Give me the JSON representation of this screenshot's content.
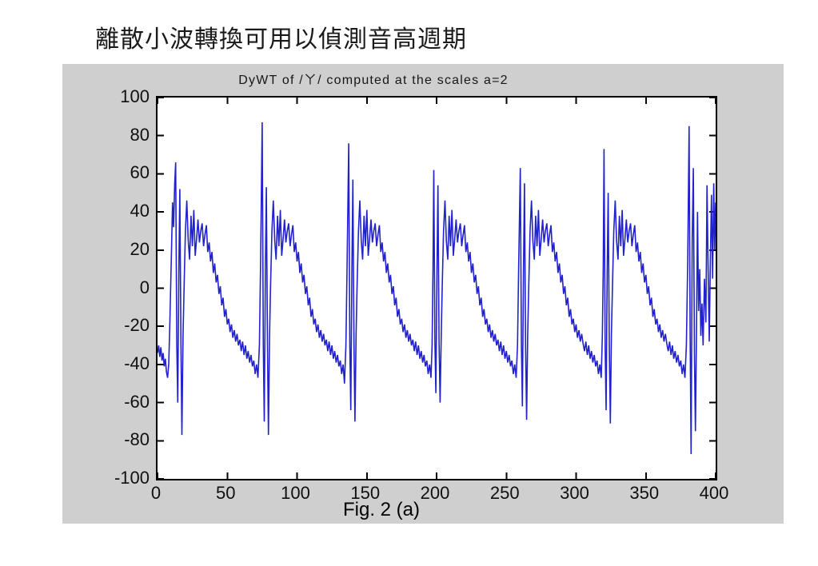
{
  "heading": "離散小波轉換可用以偵測音高週期",
  "figure": {
    "caption": "Fig. 2 (a)",
    "panel_background": "#cfcfcf",
    "axes_background": "#ffffff",
    "axis_color": "#000000"
  },
  "chart_data": {
    "type": "line",
    "title": "DyWT of /ㄚ/ computed at the scales a=2",
    "xlabel": "",
    "ylabel": "",
    "xlim": [
      0,
      400
    ],
    "ylim": [
      -100,
      100
    ],
    "xticks": [
      0,
      50,
      100,
      150,
      200,
      250,
      300,
      350,
      400
    ],
    "yticks": [
      -100,
      -80,
      -60,
      -40,
      -20,
      0,
      20,
      40,
      60,
      80,
      100
    ],
    "grid": false,
    "legend": null,
    "line_color": "#2222cc",
    "pitch_spike_x": [
      13,
      75,
      137,
      198,
      260,
      320,
      381
    ],
    "points": [
      [
        0,
        -34
      ],
      [
        0.8,
        -30
      ],
      [
        1.6,
        -36
      ],
      [
        2.4,
        -31
      ],
      [
        3.2,
        -38
      ],
      [
        4,
        -34
      ],
      [
        4.8,
        -41
      ],
      [
        5.6,
        -37
      ],
      [
        6.4,
        -44
      ],
      [
        7.2,
        -47
      ],
      [
        8,
        -40
      ],
      [
        8.7,
        -22
      ],
      [
        9.4,
        0
      ],
      [
        10.1,
        22
      ],
      [
        10.8,
        45
      ],
      [
        11.5,
        32
      ],
      [
        12.3,
        55
      ],
      [
        13,
        66
      ],
      [
        13.8,
        -30
      ],
      [
        14.5,
        -60
      ],
      [
        15.3,
        10
      ],
      [
        16,
        52
      ],
      [
        16.8,
        -30
      ],
      [
        17.5,
        -77
      ],
      [
        18.3,
        -25
      ],
      [
        19,
        0
      ],
      [
        20,
        30
      ],
      [
        21,
        46
      ],
      [
        22,
        25
      ],
      [
        23,
        15
      ],
      [
        24,
        38
      ],
      [
        25,
        22
      ],
      [
        26,
        41
      ],
      [
        27,
        17
      ],
      [
        28,
        26
      ],
      [
        29,
        36
      ],
      [
        30,
        24
      ],
      [
        31,
        30
      ],
      [
        32,
        34
      ],
      [
        33,
        22
      ],
      [
        34,
        28
      ],
      [
        35,
        33
      ],
      [
        36,
        19
      ],
      [
        37,
        24
      ],
      [
        38,
        14
      ],
      [
        39,
        19
      ],
      [
        40,
        8
      ],
      [
        41,
        13
      ],
      [
        42,
        3
      ],
      [
        43,
        7
      ],
      [
        44,
        -3
      ],
      [
        45,
        1
      ],
      [
        46,
        -9
      ],
      [
        47,
        -5
      ],
      [
        48,
        -15
      ],
      [
        49,
        -11
      ],
      [
        50,
        -19
      ],
      [
        51,
        -16
      ],
      [
        52,
        -23
      ],
      [
        53,
        -19
      ],
      [
        54,
        -26
      ],
      [
        55,
        -22
      ],
      [
        56,
        -28
      ],
      [
        57,
        -24
      ],
      [
        58,
        -30
      ],
      [
        59,
        -27
      ],
      [
        60,
        -33
      ],
      [
        61,
        -28
      ],
      [
        62,
        -35
      ],
      [
        63,
        -30
      ],
      [
        64,
        -37
      ],
      [
        65,
        -33
      ],
      [
        66,
        -39
      ],
      [
        67,
        -35
      ],
      [
        68,
        -41
      ],
      [
        69,
        -38
      ],
      [
        70,
        -45
      ],
      [
        71,
        -40
      ],
      [
        72,
        -47
      ],
      [
        73,
        -30
      ],
      [
        73.8,
        10
      ],
      [
        75,
        87
      ],
      [
        75.8,
        -30
      ],
      [
        76.5,
        -70
      ],
      [
        77.3,
        10
      ],
      [
        78,
        53
      ],
      [
        78.8,
        -30
      ],
      [
        79.5,
        -77
      ],
      [
        80.3,
        -25
      ],
      [
        81,
        0
      ],
      [
        82,
        30
      ],
      [
        83,
        46
      ],
      [
        84,
        25
      ],
      [
        85,
        15
      ],
      [
        86,
        38
      ],
      [
        87,
        22
      ],
      [
        88,
        41
      ],
      [
        89,
        17
      ],
      [
        90,
        26
      ],
      [
        91,
        36
      ],
      [
        92,
        24
      ],
      [
        93,
        30
      ],
      [
        94,
        34
      ],
      [
        95,
        22
      ],
      [
        96,
        28
      ],
      [
        97,
        33
      ],
      [
        98,
        19
      ],
      [
        99,
        24
      ],
      [
        100,
        14
      ],
      [
        101,
        19
      ],
      [
        102,
        8
      ],
      [
        103,
        13
      ],
      [
        104,
        3
      ],
      [
        105,
        7
      ],
      [
        106,
        -3
      ],
      [
        107,
        1
      ],
      [
        108,
        -9
      ],
      [
        109,
        -5
      ],
      [
        110,
        -15
      ],
      [
        111,
        -11
      ],
      [
        112,
        -19
      ],
      [
        113,
        -16
      ],
      [
        114,
        -23
      ],
      [
        115,
        -19
      ],
      [
        116,
        -26
      ],
      [
        117,
        -22
      ],
      [
        118,
        -28
      ],
      [
        119,
        -24
      ],
      [
        120,
        -30
      ],
      [
        121,
        -27
      ],
      [
        122,
        -33
      ],
      [
        123,
        -28
      ],
      [
        124,
        -35
      ],
      [
        125,
        -30
      ],
      [
        126,
        -37
      ],
      [
        127,
        -33
      ],
      [
        128,
        -39
      ],
      [
        129,
        -35
      ],
      [
        130,
        -41
      ],
      [
        131,
        -38
      ],
      [
        132,
        -45
      ],
      [
        133,
        -40
      ],
      [
        134,
        -50
      ],
      [
        135,
        -30
      ],
      [
        135.8,
        10
      ],
      [
        137,
        76
      ],
      [
        137.8,
        -30
      ],
      [
        138.5,
        -64
      ],
      [
        139.3,
        10
      ],
      [
        140,
        57
      ],
      [
        140.8,
        -30
      ],
      [
        141.5,
        -70
      ],
      [
        142.3,
        -25
      ],
      [
        143,
        0
      ],
      [
        144,
        30
      ],
      [
        145,
        46
      ],
      [
        146,
        25
      ],
      [
        147,
        15
      ],
      [
        148,
        38
      ],
      [
        149,
        22
      ],
      [
        150,
        41
      ],
      [
        151,
        17
      ],
      [
        152,
        26
      ],
      [
        153,
        36
      ],
      [
        154,
        24
      ],
      [
        155,
        30
      ],
      [
        156,
        34
      ],
      [
        157,
        22
      ],
      [
        158,
        28
      ],
      [
        159,
        33
      ],
      [
        160,
        19
      ],
      [
        161,
        24
      ],
      [
        162,
        14
      ],
      [
        163,
        19
      ],
      [
        164,
        8
      ],
      [
        165,
        13
      ],
      [
        166,
        3
      ],
      [
        167,
        7
      ],
      [
        168,
        -3
      ],
      [
        169,
        1
      ],
      [
        170,
        -9
      ],
      [
        171,
        -5
      ],
      [
        172,
        -15
      ],
      [
        173,
        -11
      ],
      [
        174,
        -19
      ],
      [
        175,
        -16
      ],
      [
        176,
        -23
      ],
      [
        177,
        -19
      ],
      [
        178,
        -26
      ],
      [
        179,
        -22
      ],
      [
        180,
        -28
      ],
      [
        181,
        -24
      ],
      [
        182,
        -30
      ],
      [
        183,
        -27
      ],
      [
        184,
        -33
      ],
      [
        185,
        -28
      ],
      [
        186,
        -35
      ],
      [
        187,
        -30
      ],
      [
        188,
        -37
      ],
      [
        189,
        -33
      ],
      [
        190,
        -39
      ],
      [
        191,
        -35
      ],
      [
        192,
        -41
      ],
      [
        193,
        -38
      ],
      [
        194,
        -45
      ],
      [
        195,
        -40
      ],
      [
        196,
        -47
      ],
      [
        196.8,
        -30
      ],
      [
        197.4,
        10
      ],
      [
        198,
        62
      ],
      [
        198.8,
        -28
      ],
      [
        199.5,
        -55
      ],
      [
        200.3,
        10
      ],
      [
        201,
        54
      ],
      [
        201.8,
        -28
      ],
      [
        202.5,
        -60
      ],
      [
        203.3,
        -25
      ],
      [
        204,
        0
      ],
      [
        205,
        30
      ],
      [
        206,
        46
      ],
      [
        207,
        25
      ],
      [
        208,
        15
      ],
      [
        209,
        38
      ],
      [
        210,
        22
      ],
      [
        211,
        41
      ],
      [
        212,
        17
      ],
      [
        213,
        26
      ],
      [
        214,
        36
      ],
      [
        215,
        24
      ],
      [
        216,
        30
      ],
      [
        217,
        34
      ],
      [
        218,
        22
      ],
      [
        219,
        28
      ],
      [
        220,
        33
      ],
      [
        221,
        19
      ],
      [
        222,
        24
      ],
      [
        223,
        14
      ],
      [
        224,
        19
      ],
      [
        225,
        8
      ],
      [
        226,
        13
      ],
      [
        227,
        3
      ],
      [
        228,
        7
      ],
      [
        229,
        -3
      ],
      [
        230,
        1
      ],
      [
        231,
        -9
      ],
      [
        232,
        -5
      ],
      [
        233,
        -15
      ],
      [
        234,
        -11
      ],
      [
        235,
        -19
      ],
      [
        236,
        -16
      ],
      [
        237,
        -23
      ],
      [
        238,
        -19
      ],
      [
        239,
        -26
      ],
      [
        240,
        -22
      ],
      [
        241,
        -28
      ],
      [
        242,
        -24
      ],
      [
        243,
        -30
      ],
      [
        244,
        -27
      ],
      [
        245,
        -33
      ],
      [
        246,
        -28
      ],
      [
        247,
        -35
      ],
      [
        248,
        -30
      ],
      [
        249,
        -37
      ],
      [
        250,
        -33
      ],
      [
        251,
        -39
      ],
      [
        252,
        -35
      ],
      [
        253,
        -41
      ],
      [
        254,
        -38
      ],
      [
        255,
        -45
      ],
      [
        256,
        -40
      ],
      [
        257,
        -47
      ],
      [
        258,
        -30
      ],
      [
        258.8,
        10
      ],
      [
        260,
        63
      ],
      [
        260.8,
        -30
      ],
      [
        261.5,
        -62
      ],
      [
        262.3,
        10
      ],
      [
        263,
        55
      ],
      [
        263.8,
        -30
      ],
      [
        264.5,
        -69
      ],
      [
        265.3,
        -25
      ],
      [
        266,
        0
      ],
      [
        267,
        30
      ],
      [
        268,
        46
      ],
      [
        269,
        25
      ],
      [
        270,
        15
      ],
      [
        271,
        38
      ],
      [
        272,
        22
      ],
      [
        273,
        41
      ],
      [
        274,
        17
      ],
      [
        275,
        26
      ],
      [
        276,
        36
      ],
      [
        277,
        24
      ],
      [
        278,
        30
      ],
      [
        279,
        34
      ],
      [
        280,
        22
      ],
      [
        281,
        28
      ],
      [
        282,
        33
      ],
      [
        283,
        19
      ],
      [
        284,
        24
      ],
      [
        285,
        14
      ],
      [
        286,
        19
      ],
      [
        287,
        8
      ],
      [
        288,
        13
      ],
      [
        289,
        3
      ],
      [
        290,
        7
      ],
      [
        291,
        -3
      ],
      [
        292,
        1
      ],
      [
        293,
        -9
      ],
      [
        294,
        -5
      ],
      [
        295,
        -15
      ],
      [
        296,
        -11
      ],
      [
        297,
        -19
      ],
      [
        298,
        -16
      ],
      [
        299,
        -23
      ],
      [
        300,
        -19
      ],
      [
        301,
        -26
      ],
      [
        302,
        -22
      ],
      [
        303,
        -28
      ],
      [
        304,
        -24
      ],
      [
        305,
        -29
      ],
      [
        306,
        -33
      ],
      [
        307,
        -28
      ],
      [
        308,
        -35
      ],
      [
        309,
        -30
      ],
      [
        310,
        -37
      ],
      [
        311,
        -33
      ],
      [
        312,
        -39
      ],
      [
        313,
        -35
      ],
      [
        314,
        -41
      ],
      [
        315,
        -38
      ],
      [
        316,
        -45
      ],
      [
        317,
        -40
      ],
      [
        318,
        -47
      ],
      [
        318.8,
        -25
      ],
      [
        319.4,
        10
      ],
      [
        320,
        73
      ],
      [
        320.8,
        -30
      ],
      [
        321.5,
        -64
      ],
      [
        322.3,
        10
      ],
      [
        323,
        50
      ],
      [
        323.8,
        -30
      ],
      [
        324.5,
        -71
      ],
      [
        325.3,
        -25
      ],
      [
        326,
        0
      ],
      [
        327,
        30
      ],
      [
        328,
        46
      ],
      [
        329,
        25
      ],
      [
        330,
        15
      ],
      [
        331,
        38
      ],
      [
        332,
        22
      ],
      [
        333,
        41
      ],
      [
        334,
        17
      ],
      [
        335,
        26
      ],
      [
        336,
        36
      ],
      [
        337,
        24
      ],
      [
        338,
        30
      ],
      [
        339,
        34
      ],
      [
        340,
        22
      ],
      [
        341,
        28
      ],
      [
        342,
        33
      ],
      [
        343,
        19
      ],
      [
        344,
        24
      ],
      [
        345,
        14
      ],
      [
        346,
        19
      ],
      [
        347,
        8
      ],
      [
        348,
        13
      ],
      [
        349,
        3
      ],
      [
        350,
        7
      ],
      [
        351,
        -3
      ],
      [
        352,
        1
      ],
      [
        353,
        -9
      ],
      [
        354,
        -5
      ],
      [
        355,
        -15
      ],
      [
        356,
        -11
      ],
      [
        357,
        -19
      ],
      [
        358,
        -16
      ],
      [
        359,
        -23
      ],
      [
        360,
        -19
      ],
      [
        361,
        -26
      ],
      [
        362,
        -22
      ],
      [
        363,
        -28
      ],
      [
        364,
        -24
      ],
      [
        365,
        -29
      ],
      [
        366,
        -33
      ],
      [
        367,
        -28
      ],
      [
        368,
        -35
      ],
      [
        369,
        -30
      ],
      [
        370,
        -37
      ],
      [
        371,
        -33
      ],
      [
        372,
        -39
      ],
      [
        373,
        -35
      ],
      [
        374,
        -41
      ],
      [
        375,
        -38
      ],
      [
        376,
        -45
      ],
      [
        377,
        -40
      ],
      [
        378,
        -47
      ],
      [
        379,
        -30
      ],
      [
        380,
        15
      ],
      [
        381,
        85
      ],
      [
        381.7,
        -25
      ],
      [
        382.4,
        -87
      ],
      [
        383.2,
        25
      ],
      [
        384,
        63
      ],
      [
        384.8,
        -35
      ],
      [
        385.5,
        -75
      ],
      [
        386.3,
        -20
      ],
      [
        387,
        40
      ],
      [
        387.8,
        -12
      ],
      [
        388.6,
        10
      ],
      [
        389.4,
        -25
      ],
      [
        390.2,
        -8
      ],
      [
        391,
        -30
      ],
      [
        392,
        5
      ],
      [
        393,
        -18
      ],
      [
        393.8,
        54
      ],
      [
        394.6,
        10
      ],
      [
        395.4,
        -28
      ],
      [
        396.2,
        15
      ],
      [
        397,
        49
      ],
      [
        397.8,
        5
      ],
      [
        398.6,
        55
      ],
      [
        399.3,
        20
      ],
      [
        400,
        45
      ]
    ]
  }
}
